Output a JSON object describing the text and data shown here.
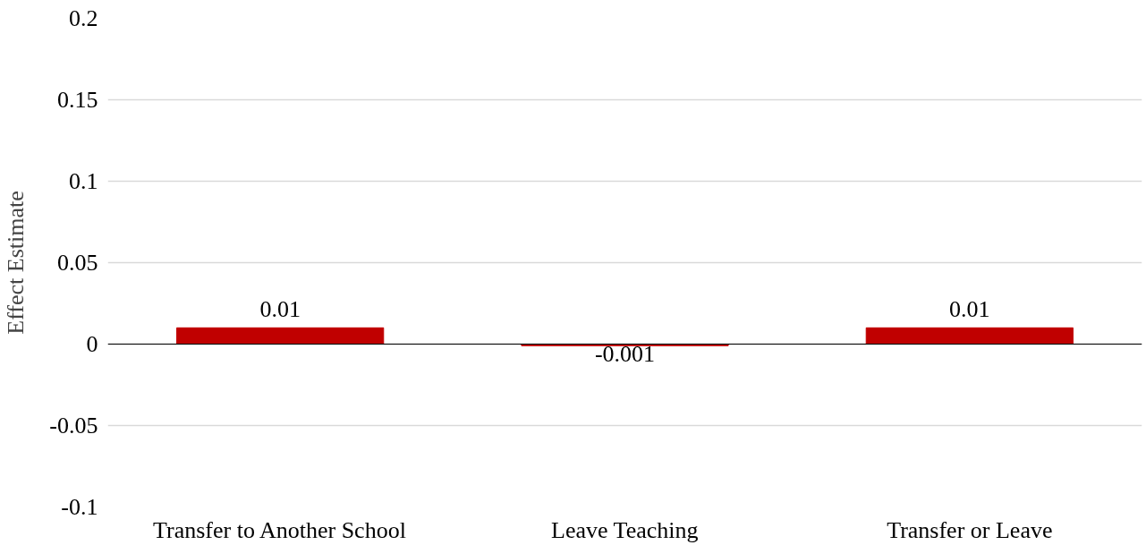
{
  "chart_data": {
    "type": "bar",
    "categories": [
      "Transfer to Another School",
      "Leave Teaching",
      "Transfer or Leave"
    ],
    "values": [
      0.01,
      -0.001,
      0.01
    ],
    "color": "#c00000",
    "ylabel": "Effect Estimate",
    "ylim": [
      -0.1,
      0.2
    ],
    "yticks": [
      -0.1,
      -0.05,
      0,
      0.05,
      0.1,
      0.15,
      0.2
    ],
    "grid": "y",
    "data_labels": true
  }
}
